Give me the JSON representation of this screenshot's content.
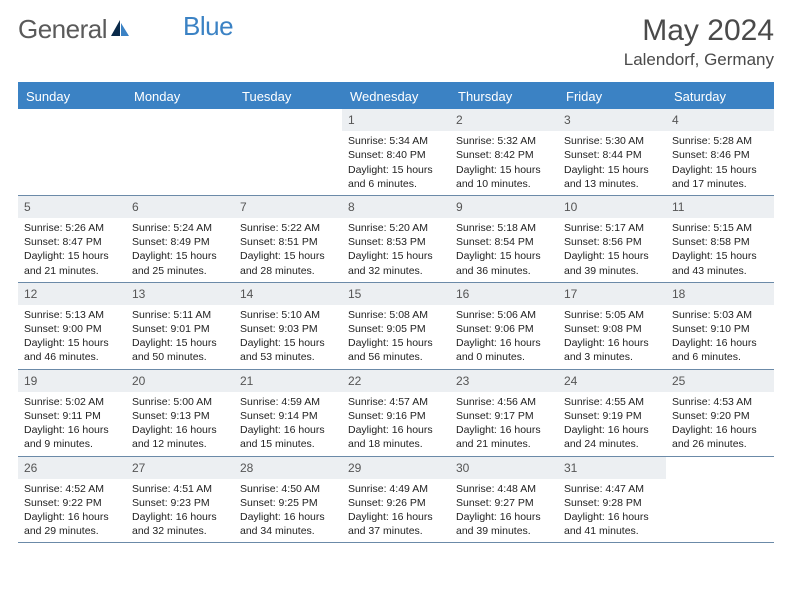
{
  "logo": {
    "text_general": "General",
    "text_blue": "Blue"
  },
  "header": {
    "month_title": "May 2024",
    "location": "Lalendorf, Germany"
  },
  "colors": {
    "primary": "#3b82c4",
    "daynum_bg": "#eceff2",
    "row_border": "#6b8aa8",
    "text": "#333333"
  },
  "weekdays": [
    "Sunday",
    "Monday",
    "Tuesday",
    "Wednesday",
    "Thursday",
    "Friday",
    "Saturday"
  ],
  "weeks": [
    [
      {
        "n": "",
        "sr": "",
        "ss": "",
        "dl": ""
      },
      {
        "n": "",
        "sr": "",
        "ss": "",
        "dl": ""
      },
      {
        "n": "",
        "sr": "",
        "ss": "",
        "dl": ""
      },
      {
        "n": "1",
        "sr": "Sunrise: 5:34 AM",
        "ss": "Sunset: 8:40 PM",
        "dl": "Daylight: 15 hours and 6 minutes."
      },
      {
        "n": "2",
        "sr": "Sunrise: 5:32 AM",
        "ss": "Sunset: 8:42 PM",
        "dl": "Daylight: 15 hours and 10 minutes."
      },
      {
        "n": "3",
        "sr": "Sunrise: 5:30 AM",
        "ss": "Sunset: 8:44 PM",
        "dl": "Daylight: 15 hours and 13 minutes."
      },
      {
        "n": "4",
        "sr": "Sunrise: 5:28 AM",
        "ss": "Sunset: 8:46 PM",
        "dl": "Daylight: 15 hours and 17 minutes."
      }
    ],
    [
      {
        "n": "5",
        "sr": "Sunrise: 5:26 AM",
        "ss": "Sunset: 8:47 PM",
        "dl": "Daylight: 15 hours and 21 minutes."
      },
      {
        "n": "6",
        "sr": "Sunrise: 5:24 AM",
        "ss": "Sunset: 8:49 PM",
        "dl": "Daylight: 15 hours and 25 minutes."
      },
      {
        "n": "7",
        "sr": "Sunrise: 5:22 AM",
        "ss": "Sunset: 8:51 PM",
        "dl": "Daylight: 15 hours and 28 minutes."
      },
      {
        "n": "8",
        "sr": "Sunrise: 5:20 AM",
        "ss": "Sunset: 8:53 PM",
        "dl": "Daylight: 15 hours and 32 minutes."
      },
      {
        "n": "9",
        "sr": "Sunrise: 5:18 AM",
        "ss": "Sunset: 8:54 PM",
        "dl": "Daylight: 15 hours and 36 minutes."
      },
      {
        "n": "10",
        "sr": "Sunrise: 5:17 AM",
        "ss": "Sunset: 8:56 PM",
        "dl": "Daylight: 15 hours and 39 minutes."
      },
      {
        "n": "11",
        "sr": "Sunrise: 5:15 AM",
        "ss": "Sunset: 8:58 PM",
        "dl": "Daylight: 15 hours and 43 minutes."
      }
    ],
    [
      {
        "n": "12",
        "sr": "Sunrise: 5:13 AM",
        "ss": "Sunset: 9:00 PM",
        "dl": "Daylight: 15 hours and 46 minutes."
      },
      {
        "n": "13",
        "sr": "Sunrise: 5:11 AM",
        "ss": "Sunset: 9:01 PM",
        "dl": "Daylight: 15 hours and 50 minutes."
      },
      {
        "n": "14",
        "sr": "Sunrise: 5:10 AM",
        "ss": "Sunset: 9:03 PM",
        "dl": "Daylight: 15 hours and 53 minutes."
      },
      {
        "n": "15",
        "sr": "Sunrise: 5:08 AM",
        "ss": "Sunset: 9:05 PM",
        "dl": "Daylight: 15 hours and 56 minutes."
      },
      {
        "n": "16",
        "sr": "Sunrise: 5:06 AM",
        "ss": "Sunset: 9:06 PM",
        "dl": "Daylight: 16 hours and 0 minutes."
      },
      {
        "n": "17",
        "sr": "Sunrise: 5:05 AM",
        "ss": "Sunset: 9:08 PM",
        "dl": "Daylight: 16 hours and 3 minutes."
      },
      {
        "n": "18",
        "sr": "Sunrise: 5:03 AM",
        "ss": "Sunset: 9:10 PM",
        "dl": "Daylight: 16 hours and 6 minutes."
      }
    ],
    [
      {
        "n": "19",
        "sr": "Sunrise: 5:02 AM",
        "ss": "Sunset: 9:11 PM",
        "dl": "Daylight: 16 hours and 9 minutes."
      },
      {
        "n": "20",
        "sr": "Sunrise: 5:00 AM",
        "ss": "Sunset: 9:13 PM",
        "dl": "Daylight: 16 hours and 12 minutes."
      },
      {
        "n": "21",
        "sr": "Sunrise: 4:59 AM",
        "ss": "Sunset: 9:14 PM",
        "dl": "Daylight: 16 hours and 15 minutes."
      },
      {
        "n": "22",
        "sr": "Sunrise: 4:57 AM",
        "ss": "Sunset: 9:16 PM",
        "dl": "Daylight: 16 hours and 18 minutes."
      },
      {
        "n": "23",
        "sr": "Sunrise: 4:56 AM",
        "ss": "Sunset: 9:17 PM",
        "dl": "Daylight: 16 hours and 21 minutes."
      },
      {
        "n": "24",
        "sr": "Sunrise: 4:55 AM",
        "ss": "Sunset: 9:19 PM",
        "dl": "Daylight: 16 hours and 24 minutes."
      },
      {
        "n": "25",
        "sr": "Sunrise: 4:53 AM",
        "ss": "Sunset: 9:20 PM",
        "dl": "Daylight: 16 hours and 26 minutes."
      }
    ],
    [
      {
        "n": "26",
        "sr": "Sunrise: 4:52 AM",
        "ss": "Sunset: 9:22 PM",
        "dl": "Daylight: 16 hours and 29 minutes."
      },
      {
        "n": "27",
        "sr": "Sunrise: 4:51 AM",
        "ss": "Sunset: 9:23 PM",
        "dl": "Daylight: 16 hours and 32 minutes."
      },
      {
        "n": "28",
        "sr": "Sunrise: 4:50 AM",
        "ss": "Sunset: 9:25 PM",
        "dl": "Daylight: 16 hours and 34 minutes."
      },
      {
        "n": "29",
        "sr": "Sunrise: 4:49 AM",
        "ss": "Sunset: 9:26 PM",
        "dl": "Daylight: 16 hours and 37 minutes."
      },
      {
        "n": "30",
        "sr": "Sunrise: 4:48 AM",
        "ss": "Sunset: 9:27 PM",
        "dl": "Daylight: 16 hours and 39 minutes."
      },
      {
        "n": "31",
        "sr": "Sunrise: 4:47 AM",
        "ss": "Sunset: 9:28 PM",
        "dl": "Daylight: 16 hours and 41 minutes."
      },
      {
        "n": "",
        "sr": "",
        "ss": "",
        "dl": ""
      }
    ]
  ]
}
